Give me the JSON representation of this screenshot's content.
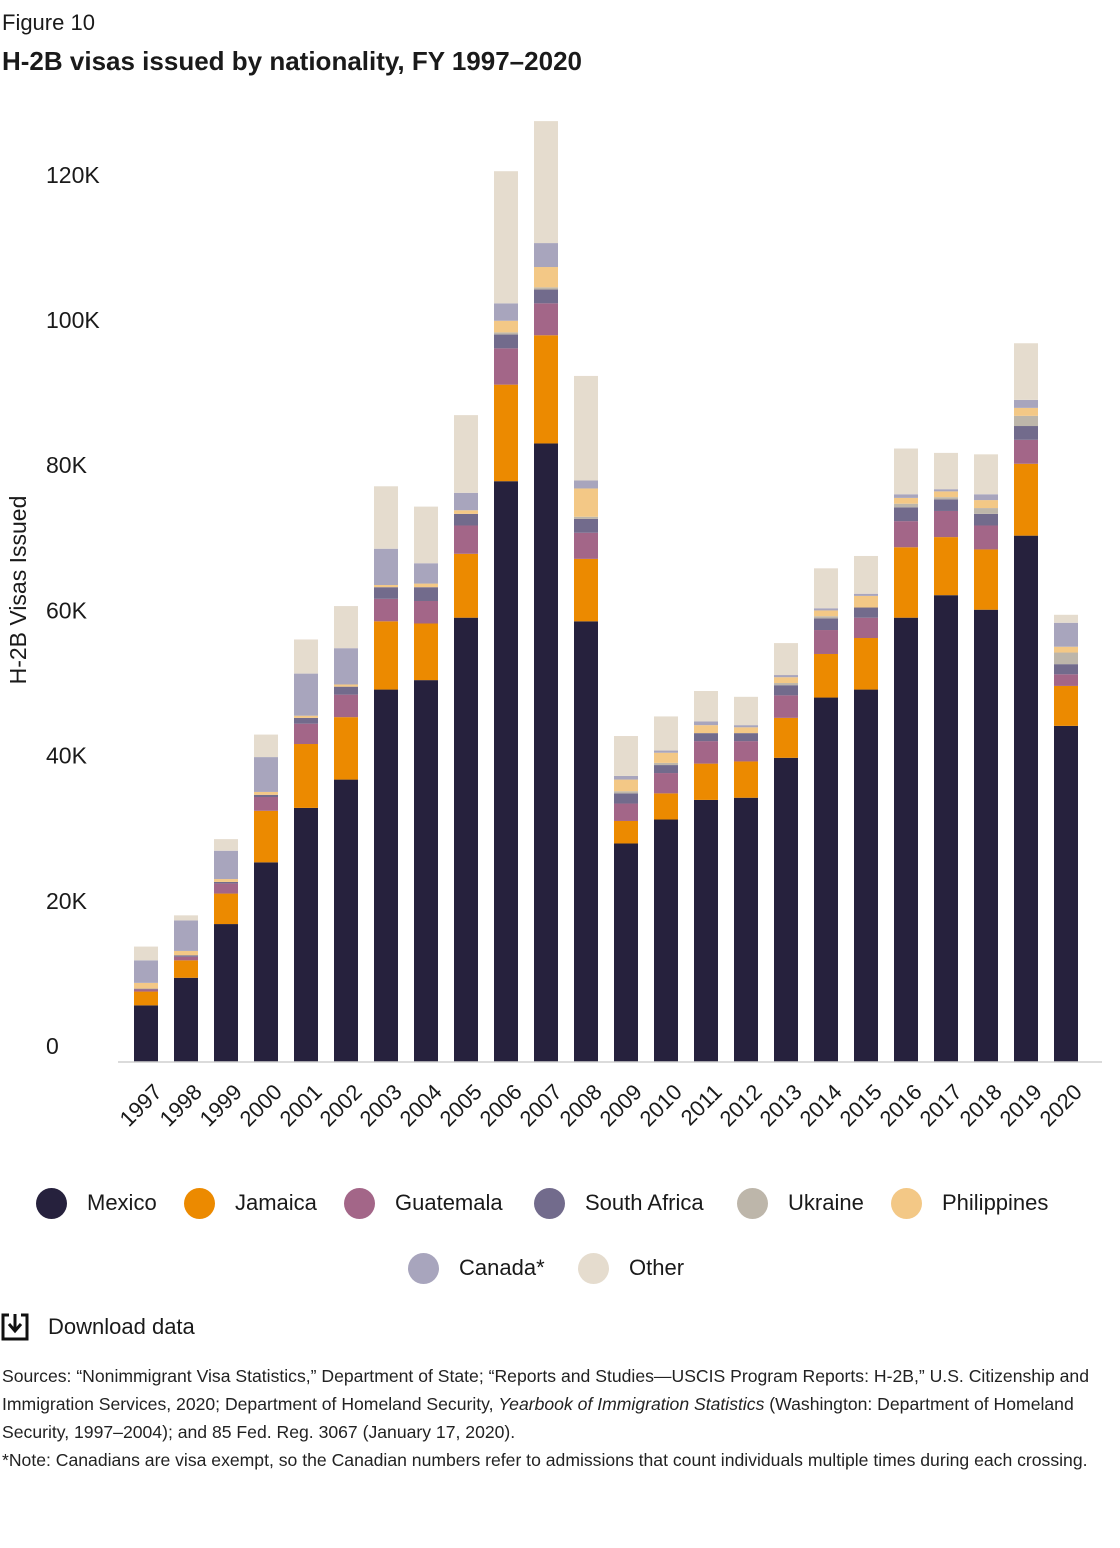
{
  "figure_label": "Figure 10",
  "title": "H-2B visas issued by nationality, FY 1997–2020",
  "download_label": "Download data",
  "sources": [
    {
      "text": "Sources: “Nonimmigrant Visa Statistics,” Department of State; “Reports and Studies—USCIS Program Reports: H-2B,” U.S. Citizenship and Immigration Services, 2020; Department of Homeland Security, ",
      "italic": false
    },
    {
      "text": "Yearbook of Immigration Statistics",
      "italic": true
    },
    {
      "text": " (Washington: Department of Homeland Security, 1997–2004); and 85 Fed. Reg. 3067 (January 17, 2020).",
      "italic": false
    }
  ],
  "note": "*Note: Canadians are visa exempt, so the Canadian numbers refer to admissions that count individuals multiple times during each crossing.",
  "chart_data": {
    "type": "bar",
    "stacked": true,
    "title": "H-2B visas issued by nationality, FY 1997–2020",
    "xlabel": "",
    "ylabel": "H-2B Visas Issued",
    "ylim": [
      0,
      130000
    ],
    "yticks": [
      0,
      20000,
      40000,
      60000,
      80000,
      100000,
      120000
    ],
    "ytick_labels": [
      "0",
      "20K",
      "40K",
      "60K",
      "80K",
      "100K",
      "120K"
    ],
    "grid": false,
    "legend_position": "bottom",
    "categories": [
      "1997",
      "1998",
      "1999",
      "2000",
      "2001",
      "2002",
      "2003",
      "2004",
      "2005",
      "2006",
      "2007",
      "2008",
      "2009",
      "2010",
      "2011",
      "2012",
      "2013",
      "2014",
      "2015",
      "2016",
      "2017",
      "2018",
      "2019",
      "2020"
    ],
    "series": [
      {
        "name": "Mexico",
        "color": "#26213d",
        "values": [
          7800,
          11600,
          19000,
          27500,
          35000,
          38900,
          51300,
          52600,
          61200,
          80000,
          85200,
          60700,
          30100,
          33400,
          36100,
          36400,
          41900,
          50200,
          51300,
          61200,
          64300,
          62300,
          72500,
          46300
        ]
      },
      {
        "name": "Jamaica",
        "color": "#ec8a00",
        "values": [
          1900,
          2400,
          4200,
          7100,
          8800,
          8600,
          9400,
          7800,
          8800,
          13300,
          14900,
          8600,
          3100,
          3600,
          5000,
          5000,
          5500,
          6000,
          7100,
          9700,
          8000,
          8300,
          9900,
          5500
        ]
      },
      {
        "name": "Guatemala",
        "color": "#a36688",
        "values": [
          300,
          500,
          1400,
          1900,
          2800,
          3100,
          3100,
          3100,
          3900,
          5000,
          4400,
          3600,
          2400,
          2800,
          3100,
          2800,
          3100,
          3300,
          2800,
          3600,
          3600,
          3300,
          3300,
          1600
        ]
      },
      {
        "name": "South Africa",
        "color": "#726b8c",
        "values": [
          100,
          200,
          200,
          300,
          800,
          1100,
          1600,
          1900,
          1600,
          1900,
          1900,
          1900,
          1400,
          1100,
          1100,
          1100,
          1400,
          1600,
          1400,
          1900,
          1600,
          1600,
          1900,
          1400
        ]
      },
      {
        "name": "Ukraine",
        "color": "#bdb6aa",
        "values": [
          0,
          0,
          0,
          0,
          0,
          0,
          0,
          0,
          0,
          300,
          300,
          300,
          300,
          300,
          0,
          0,
          300,
          300,
          0,
          500,
          300,
          800,
          1400,
          1600
        ]
      },
      {
        "name": "Philippines",
        "color": "#f3c886",
        "values": [
          800,
          600,
          400,
          400,
          300,
          300,
          300,
          500,
          500,
          1600,
          2800,
          3900,
          1600,
          1400,
          1100,
          800,
          800,
          800,
          1600,
          800,
          800,
          1100,
          1100,
          800
        ]
      },
      {
        "name": "Canada*",
        "color": "#a8a5bd",
        "values": [
          3100,
          4200,
          3900,
          4800,
          5800,
          5000,
          5000,
          2800,
          2400,
          2400,
          3300,
          1100,
          500,
          300,
          500,
          300,
          300,
          300,
          300,
          500,
          300,
          800,
          1100,
          3300
        ]
      },
      {
        "name": "Other",
        "color": "#e5dcce",
        "values": [
          1900,
          700,
          1600,
          3100,
          4700,
          5800,
          8600,
          7800,
          10700,
          18200,
          16800,
          14400,
          5500,
          4700,
          4200,
          3900,
          4400,
          5500,
          5200,
          6300,
          5000,
          5500,
          7800,
          1100
        ]
      }
    ]
  }
}
